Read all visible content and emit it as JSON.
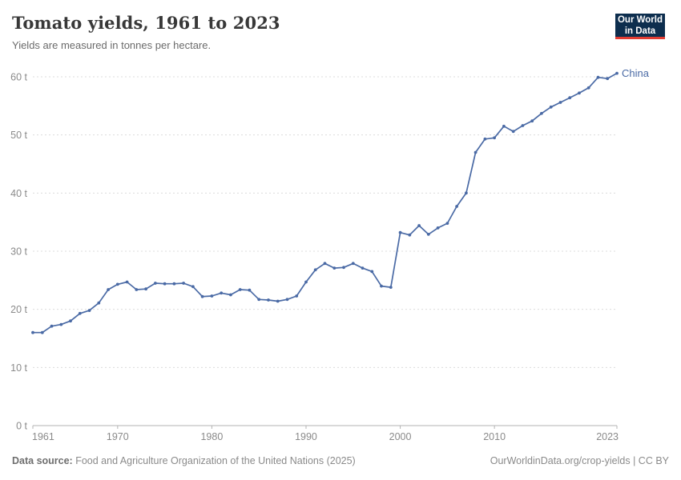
{
  "header": {
    "title": "Tomato yields, 1961 to 2023",
    "subtitle": "Yields are measured in tonnes per hectare."
  },
  "logo": {
    "line1": "Our World",
    "line2": "in Data",
    "background_color": "#0d2e4e",
    "underline_color": "#e23d33",
    "text_color": "#ffffff"
  },
  "chart_data": {
    "type": "line",
    "title": "Tomato yields, 1961 to 2023",
    "ylabel": "tonnes per hectare",
    "xlabel": "",
    "grid": "horizontal-dashed",
    "legend_position": "end-of-line",
    "xlim": [
      1961,
      2023
    ],
    "ylim": [
      0,
      60
    ],
    "xticks": [
      1961,
      1970,
      1980,
      1990,
      2000,
      2010,
      2023
    ],
    "yticks": [
      0,
      10,
      20,
      30,
      40,
      50,
      60
    ],
    "ytick_labels": [
      "0 t",
      "10 t",
      "20 t",
      "30 t",
      "40 t",
      "50 t",
      "60 t"
    ],
    "x": [
      1961,
      1962,
      1963,
      1964,
      1965,
      1966,
      1967,
      1968,
      1969,
      1970,
      1971,
      1972,
      1973,
      1974,
      1975,
      1976,
      1977,
      1978,
      1979,
      1980,
      1981,
      1982,
      1983,
      1984,
      1985,
      1986,
      1987,
      1988,
      1989,
      1990,
      1991,
      1992,
      1993,
      1994,
      1995,
      1996,
      1997,
      1998,
      1999,
      2000,
      2001,
      2002,
      2003,
      2004,
      2005,
      2006,
      2007,
      2008,
      2009,
      2010,
      2011,
      2012,
      2013,
      2014,
      2015,
      2016,
      2017,
      2018,
      2019,
      2020,
      2021,
      2022,
      2023
    ],
    "series": [
      {
        "name": "China",
        "color": "#4a6aa5",
        "values": [
          16.0,
          16.0,
          17.1,
          17.4,
          18.0,
          19.3,
          19.8,
          21.1,
          23.4,
          24.3,
          24.7,
          23.4,
          23.5,
          24.5,
          24.4,
          24.4,
          24.5,
          23.9,
          22.2,
          22.3,
          22.8,
          22.5,
          23.4,
          23.3,
          21.7,
          21.6,
          21.4,
          21.7,
          22.3,
          24.7,
          26.8,
          27.9,
          27.1,
          27.2,
          27.9,
          27.1,
          26.5,
          24.0,
          23.8,
          33.2,
          32.8,
          34.4,
          32.9,
          34.0,
          34.8,
          37.7,
          40.0,
          47.0,
          49.3,
          49.5,
          51.5,
          50.6,
          51.6,
          52.4,
          53.7,
          54.8,
          55.6,
          56.4,
          57.2,
          58.1,
          59.9,
          59.7,
          60.6
        ]
      }
    ],
    "style": {
      "gridline_color": "#dcdcdc",
      "axis_color": "#b3b3b3",
      "tick_label_color": "#8a8a8a"
    }
  },
  "footer": {
    "source_label": "Data source:",
    "source_text": " Food and Agriculture Organization of the United Nations (2025)",
    "right_link": "OurWorldinData.org/crop-yields",
    "right_separator": " | ",
    "right_license": "CC BY"
  }
}
